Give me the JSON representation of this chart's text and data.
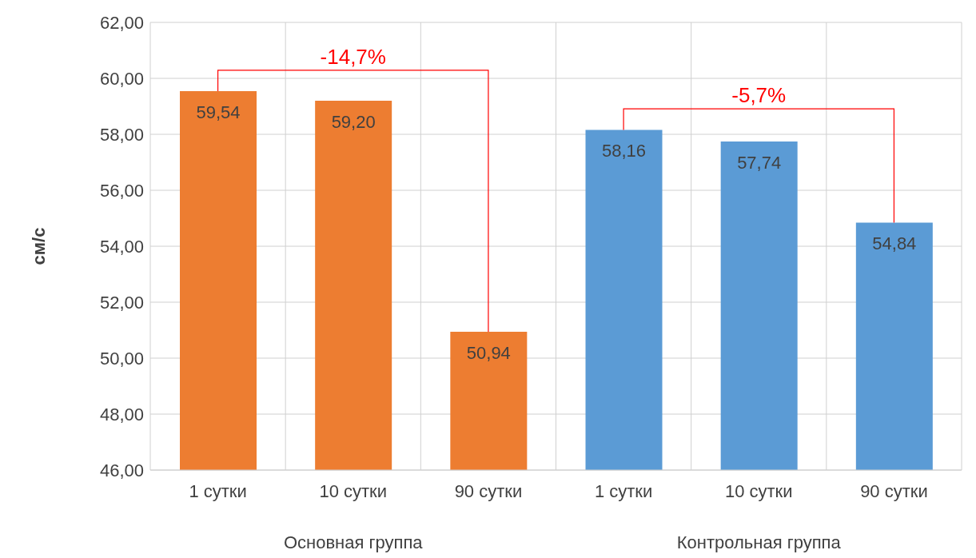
{
  "chart_data": {
    "type": "bar",
    "ylabel": "см/с",
    "categories": [
      "1 сутки",
      "10 сутки",
      "90 сутки",
      "1 сутки",
      "10 сутки",
      "90 сутки"
    ],
    "values": [
      59.54,
      59.2,
      50.94,
      58.16,
      57.74,
      54.84
    ],
    "colors": [
      "#ed7d31",
      "#ed7d31",
      "#ed7d31",
      "#5b9bd5",
      "#5b9bd5",
      "#5b9bd5"
    ],
    "value_labels": [
      "59,54",
      "59,20",
      "50,94",
      "58,16",
      "57,74",
      "54,84"
    ],
    "ylim": [
      46,
      62
    ],
    "yticks": [
      {
        "value": 46,
        "label": "46,00"
      },
      {
        "value": 48,
        "label": "48,00"
      },
      {
        "value": 50,
        "label": "50,00"
      },
      {
        "value": 52,
        "label": "52,00"
      },
      {
        "value": 54,
        "label": "54,00"
      },
      {
        "value": 56,
        "label": "56,00"
      },
      {
        "value": 58,
        "label": "58,00"
      },
      {
        "value": 60,
        "label": "60,00"
      },
      {
        "value": 62,
        "label": "62,00"
      }
    ],
    "grid": true,
    "annotations": [
      "-14,7%",
      "-5,7%",
      "Основная группа",
      "Контрольная группа"
    ]
  }
}
